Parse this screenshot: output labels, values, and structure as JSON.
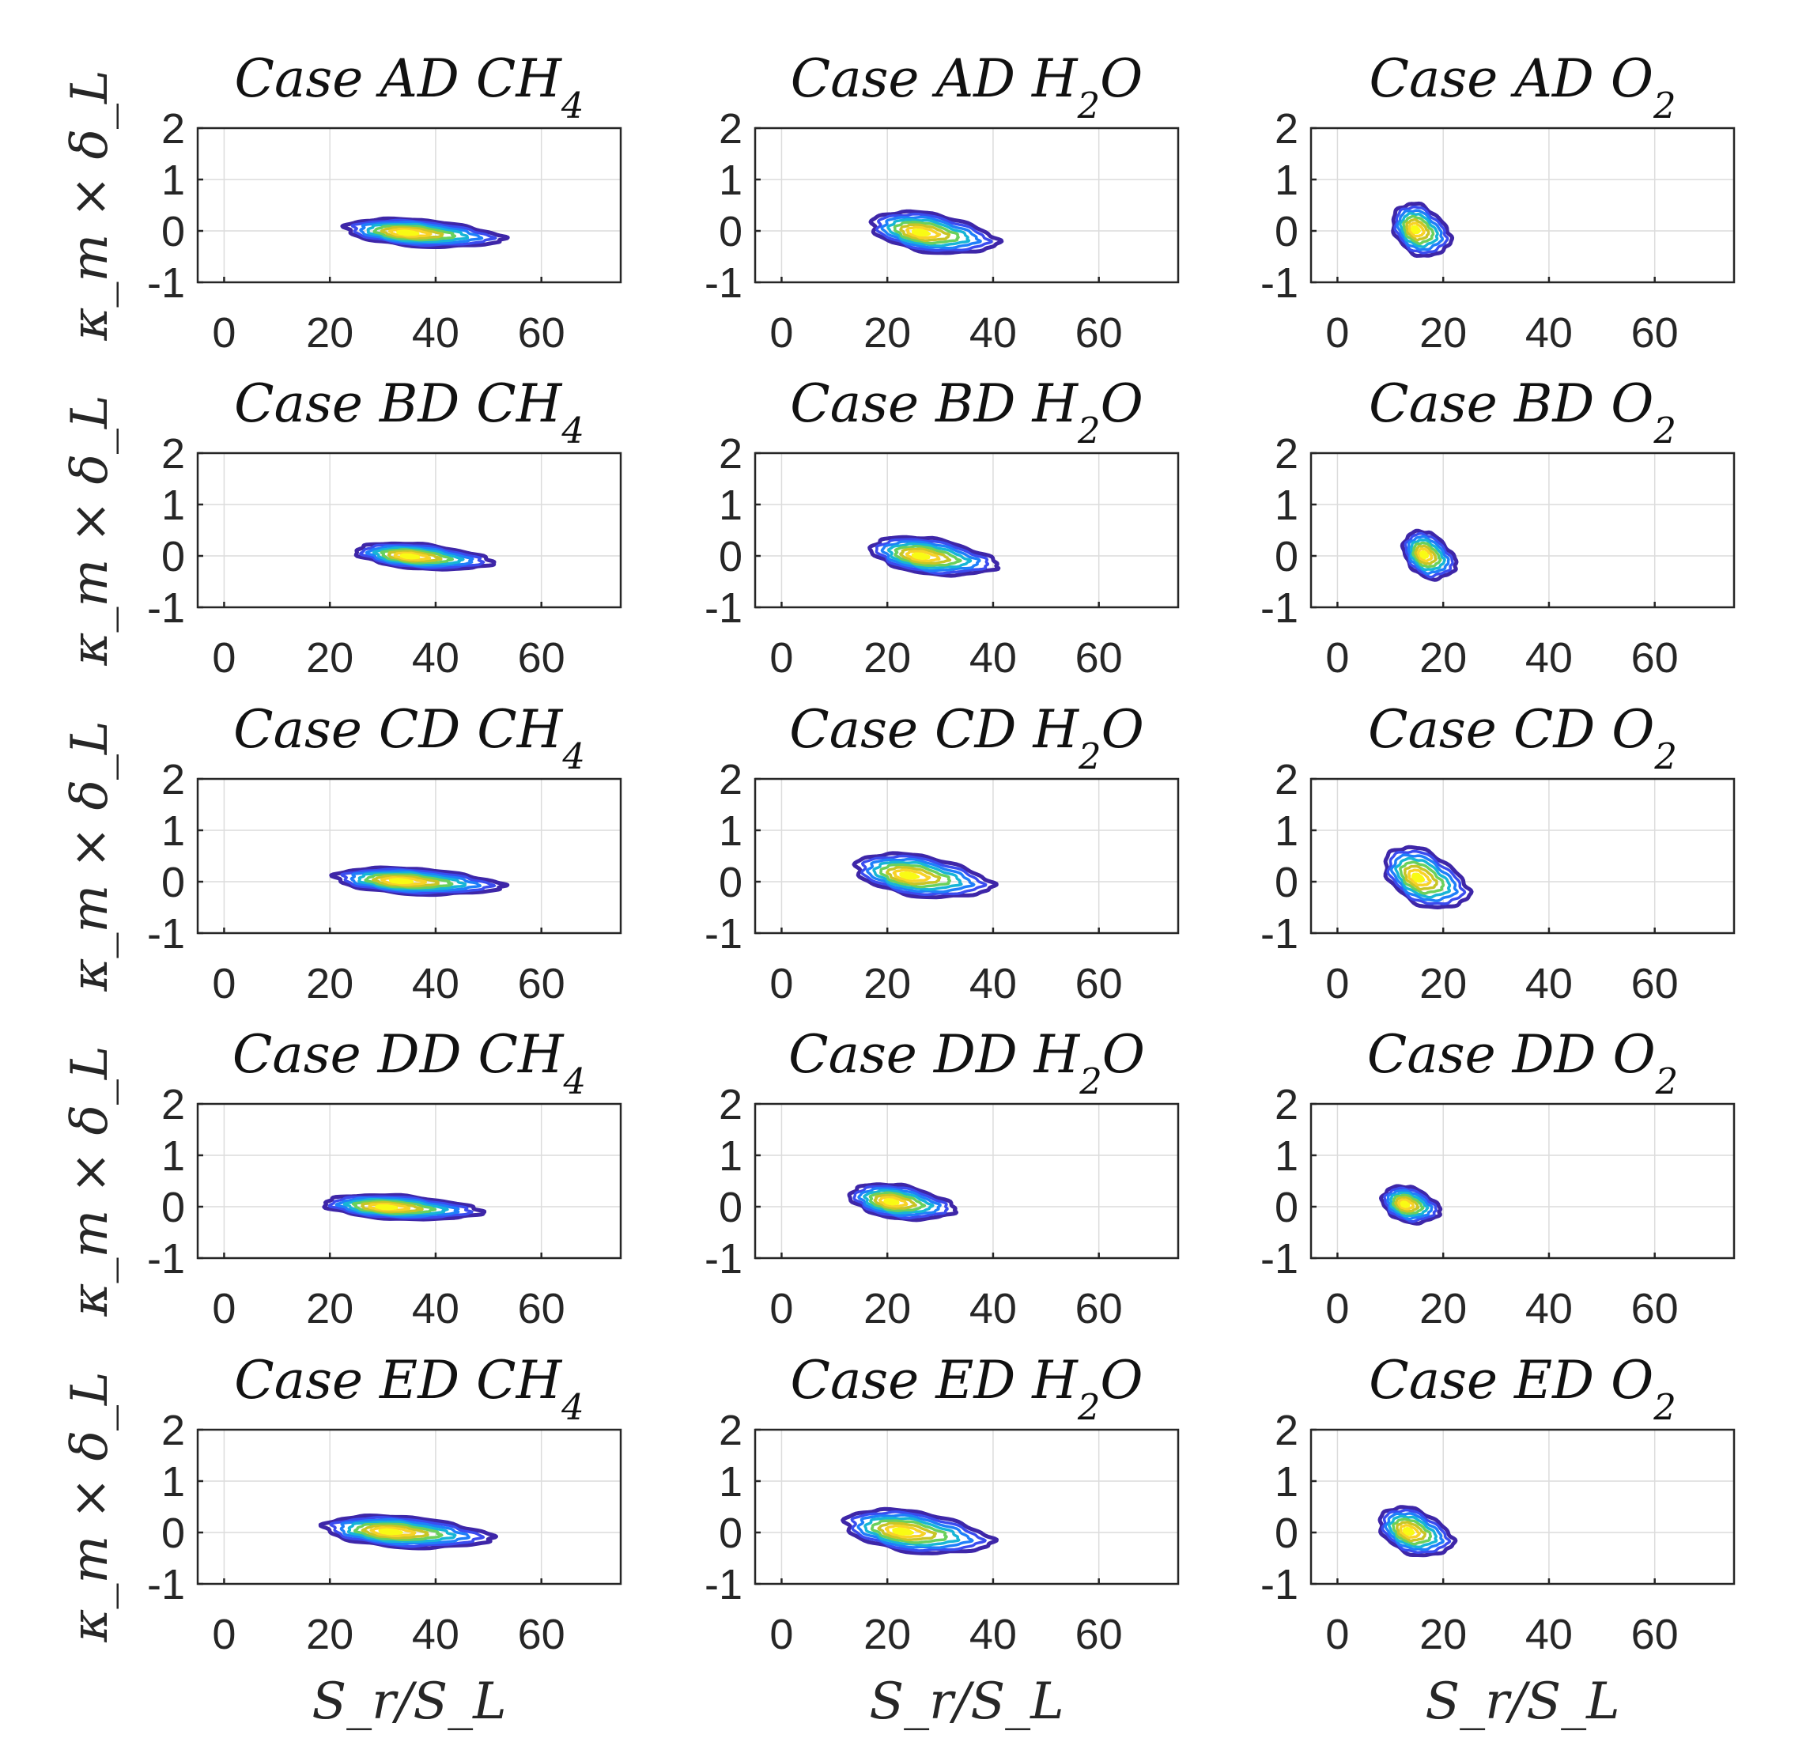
{
  "figure": {
    "xlabel": "S_r/S_L",
    "ylabel": "κ_m × δ_L",
    "xlim": [
      -5,
      75
    ],
    "ylim": [
      -1,
      2
    ],
    "xticks": [
      0,
      20,
      40,
      60
    ],
    "yticks": [
      -1,
      0,
      1,
      2
    ],
    "grid": true,
    "colormap": [
      "#3e26a8",
      "#3b4cef",
      "#1f7ffa",
      "#17b5d6",
      "#1ac7a1",
      "#6ad05c",
      "#c8c526",
      "#f8d227",
      "#f9fb14"
    ]
  },
  "chart_data": [
    {
      "type": "contour",
      "case": "AD",
      "species": "CH4",
      "title": {
        "prefix": "Case AD ",
        "base": "CH",
        "sub": "4",
        "tail": ""
      },
      "center": [
        38,
        -0.05
      ],
      "half_width": 15,
      "half_height": 0.26,
      "tilt": -0.45,
      "levels": 8,
      "xlim": [
        -5,
        75
      ],
      "ylim": [
        -1,
        2
      ]
    },
    {
      "type": "contour",
      "case": "AD",
      "species": "H2O",
      "title": {
        "prefix": "Case AD ",
        "base": "H",
        "sub": "2",
        "tail": "O"
      },
      "center": [
        29,
        -0.05
      ],
      "half_width": 12,
      "half_height": 0.38,
      "tilt": -0.5,
      "levels": 8,
      "xlim": [
        -5,
        75
      ],
      "ylim": [
        -1,
        2
      ]
    },
    {
      "type": "contour",
      "case": "AD",
      "species": "O2",
      "title": {
        "prefix": "Case AD ",
        "base": "O",
        "sub": "2",
        "tail": ""
      },
      "center": [
        16,
        0.0
      ],
      "half_width": 5.5,
      "half_height": 0.5,
      "tilt": -0.35,
      "levels": 8,
      "xlim": [
        -5,
        75
      ],
      "ylim": [
        -1,
        2
      ]
    },
    {
      "type": "contour",
      "case": "BD",
      "species": "CH4",
      "title": {
        "prefix": "Case BD ",
        "base": "CH",
        "sub": "4",
        "tail": ""
      },
      "center": [
        38,
        -0.02
      ],
      "half_width": 13,
      "half_height": 0.24,
      "tilt": -0.5,
      "levels": 8,
      "xlim": [
        -5,
        75
      ],
      "ylim": [
        -1,
        2
      ]
    },
    {
      "type": "contour",
      "case": "BD",
      "species": "H2O",
      "title": {
        "prefix": "Case BD ",
        "base": "H",
        "sub": "2",
        "tail": "O"
      },
      "center": [
        29,
        -0.02
      ],
      "half_width": 12,
      "half_height": 0.35,
      "tilt": -0.5,
      "levels": 8,
      "xlim": [
        -5,
        75
      ],
      "ylim": [
        -1,
        2
      ]
    },
    {
      "type": "contour",
      "case": "BD",
      "species": "O2",
      "title": {
        "prefix": "Case BD ",
        "base": "O",
        "sub": "2",
        "tail": ""
      },
      "center": [
        17.5,
        0.0
      ],
      "half_width": 5,
      "half_height": 0.45,
      "tilt": -0.4,
      "levels": 8,
      "xlim": [
        -5,
        75
      ],
      "ylim": [
        -1,
        2
      ]
    },
    {
      "type": "contour",
      "case": "CD",
      "species": "CH4",
      "title": {
        "prefix": "Case CD ",
        "base": "CH",
        "sub": "4",
        "tail": ""
      },
      "center": [
        37,
        0.0
      ],
      "half_width": 16,
      "half_height": 0.25,
      "tilt": -0.4,
      "levels": 8,
      "xlim": [
        -5,
        75
      ],
      "ylim": [
        -1,
        2
      ]
    },
    {
      "type": "contour",
      "case": "CD",
      "species": "H2O",
      "title": {
        "prefix": "Case CD ",
        "base": "H",
        "sub": "2",
        "tail": "O"
      },
      "center": [
        27,
        0.1
      ],
      "half_width": 13,
      "half_height": 0.4,
      "tilt": -0.5,
      "levels": 8,
      "xlim": [
        -5,
        75
      ],
      "ylim": [
        -1,
        2
      ]
    },
    {
      "type": "contour",
      "case": "CD",
      "species": "O2",
      "title": {
        "prefix": "Case CD ",
        "base": "O",
        "sub": "2",
        "tail": ""
      },
      "center": [
        17,
        0.05
      ],
      "half_width": 8,
      "half_height": 0.55,
      "tilt": -0.55,
      "levels": 8,
      "xlim": [
        -5,
        75
      ],
      "ylim": [
        -1,
        2
      ]
    },
    {
      "type": "contour",
      "case": "DD",
      "species": "CH4",
      "title": {
        "prefix": "Case DD ",
        "base": "CH",
        "sub": "4",
        "tail": ""
      },
      "center": [
        34,
        -0.02
      ],
      "half_width": 15,
      "half_height": 0.23,
      "tilt": -0.4,
      "levels": 8,
      "xlim": [
        -5,
        75
      ],
      "ylim": [
        -1,
        2
      ]
    },
    {
      "type": "contour",
      "case": "DD",
      "species": "H2O",
      "title": {
        "prefix": "Case DD ",
        "base": "H",
        "sub": "2",
        "tail": "O"
      },
      "center": [
        23,
        0.08
      ],
      "half_width": 10,
      "half_height": 0.33,
      "tilt": -0.45,
      "levels": 8,
      "xlim": [
        -5,
        75
      ],
      "ylim": [
        -1,
        2
      ]
    },
    {
      "type": "contour",
      "case": "DD",
      "species": "O2",
      "title": {
        "prefix": "Case DD ",
        "base": "O",
        "sub": "2",
        "tail": ""
      },
      "center": [
        14,
        0.03
      ],
      "half_width": 5.5,
      "half_height": 0.35,
      "tilt": -0.35,
      "levels": 8,
      "xlim": [
        -5,
        75
      ],
      "ylim": [
        -1,
        2
      ]
    },
    {
      "type": "contour",
      "case": "ED",
      "species": "CH4",
      "title": {
        "prefix": "Case ED ",
        "base": "CH",
        "sub": "4",
        "tail": ""
      },
      "center": [
        35,
        0.0
      ],
      "half_width": 16,
      "half_height": 0.3,
      "tilt": -0.4,
      "levels": 8,
      "xlim": [
        -5,
        75
      ],
      "ylim": [
        -1,
        2
      ]
    },
    {
      "type": "contour",
      "case": "ED",
      "species": "H2O",
      "title": {
        "prefix": "Case ED ",
        "base": "H",
        "sub": "2",
        "tail": "O"
      },
      "center": [
        26,
        0.0
      ],
      "half_width": 14,
      "half_height": 0.4,
      "tilt": -0.5,
      "levels": 8,
      "xlim": [
        -5,
        75
      ],
      "ylim": [
        -1,
        2
      ]
    },
    {
      "type": "contour",
      "case": "ED",
      "species": "O2",
      "title": {
        "prefix": "Case ED ",
        "base": "O",
        "sub": "2",
        "tail": ""
      },
      "center": [
        15,
        0.0
      ],
      "half_width": 7,
      "half_height": 0.45,
      "tilt": -0.45,
      "levels": 8,
      "xlim": [
        -5,
        75
      ],
      "ylim": [
        -1,
        2
      ]
    }
  ]
}
